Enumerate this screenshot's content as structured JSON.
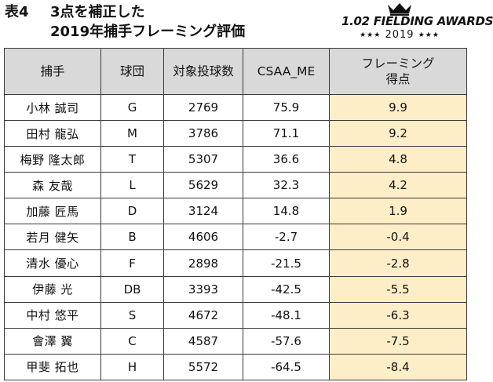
{
  "caption": {
    "label": "表4",
    "title_line1": "3点を補正した",
    "title_line2": "2019年捕手フレーミング評価"
  },
  "logo": {
    "brand": "1.02 FIELDING AWARDS",
    "year": "2019",
    "stars": "★★★"
  },
  "table": {
    "headers": {
      "catcher": "捕手",
      "team": "球団",
      "pitches": "対象投球数",
      "csaa": "CSAA_ME",
      "framing_line1": "フレーミング",
      "framing_line2": "得点"
    },
    "rows": [
      {
        "catcher": "小林 誠司",
        "team": "G",
        "pitches": "2769",
        "csaa": "75.9",
        "framing": "9.9"
      },
      {
        "catcher": "田村 龍弘",
        "team": "M",
        "pitches": "3786",
        "csaa": "71.1",
        "framing": "9.2"
      },
      {
        "catcher": "梅野 隆太郎",
        "team": "T",
        "pitches": "5307",
        "csaa": "36.6",
        "framing": "4.8"
      },
      {
        "catcher": "森 友哉",
        "team": "L",
        "pitches": "5629",
        "csaa": "32.3",
        "framing": "4.2"
      },
      {
        "catcher": "加藤 匠馬",
        "team": "D",
        "pitches": "3124",
        "csaa": "14.8",
        "framing": "1.9"
      },
      {
        "catcher": "若月 健矢",
        "team": "B",
        "pitches": "4606",
        "csaa": "-2.7",
        "framing": "-0.4"
      },
      {
        "catcher": "清水 優心",
        "team": "F",
        "pitches": "2898",
        "csaa": "-21.5",
        "framing": "-2.8"
      },
      {
        "catcher": "伊藤 光",
        "team": "DB",
        "pitches": "3393",
        "csaa": "-42.5",
        "framing": "-5.5"
      },
      {
        "catcher": "中村 悠平",
        "team": "S",
        "pitches": "4672",
        "csaa": "-48.1",
        "framing": "-6.3"
      },
      {
        "catcher": "會澤 翼",
        "team": "C",
        "pitches": "4587",
        "csaa": "-57.6",
        "framing": "-7.5"
      },
      {
        "catcher": "甲斐 拓也",
        "team": "H",
        "pitches": "5572",
        "csaa": "-64.5",
        "framing": "-8.4"
      }
    ]
  },
  "colors": {
    "header_bg": "#d9d9d9",
    "highlight_bg": "#fdeec8",
    "border": "#3a3a3a"
  }
}
